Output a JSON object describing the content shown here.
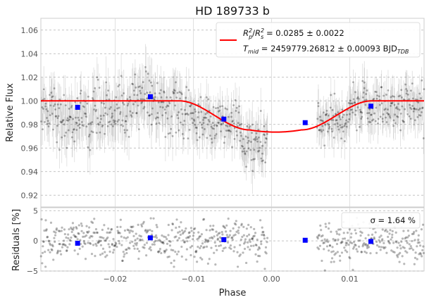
{
  "chart_data": [
    {
      "panel": "main",
      "type": "scatter",
      "title": "HD 189733 b",
      "ylabel": "Relative Flux",
      "xlim": [
        -0.0295,
        0.0195
      ],
      "ylim": [
        0.91,
        1.07
      ],
      "xticks": [
        -0.02,
        -0.01,
        0.0,
        0.01
      ],
      "yticks": [
        0.92,
        0.94,
        0.96,
        0.98,
        1.0,
        1.02,
        1.04,
        1.06
      ],
      "ytick_labels": [
        "0.92",
        "0.94",
        "0.96",
        "0.98",
        "1.00",
        "1.02",
        "1.04",
        "1.06"
      ],
      "grid": true,
      "legend": {
        "placement": "top-right",
        "entries": [
          {
            "line1": "R_p^2/R_s^2 = 0.0285 ± 0.0022",
            "line2": "T_mid = 2459779.26812 ± 0.00093 BJD_TDB"
          }
        ]
      },
      "model": {
        "color": "#ff0000",
        "rp_rs2": 0.0285,
        "t_mid": 2459779.26812,
        "baseline": 1.0,
        "min_flux": 0.9735,
        "ingress_start": -0.0118,
        "ingress_end": -0.0028,
        "egress_start": 0.0038,
        "egress_end": 0.0128
      },
      "binned_points": {
        "color": "#0000ff",
        "x": [
          -0.0248,
          -0.0155,
          -0.0061,
          0.0043,
          0.0127
        ],
        "y": [
          0.9945,
          1.0035,
          0.9845,
          0.9815,
          0.9955
        ]
      },
      "raw_data_segments": [
        {
          "x_start": -0.0295,
          "x_end": -0.0275,
          "mean": 0.995,
          "scatter": 0.012,
          "err": 0.016
        },
        {
          "x_start": -0.0275,
          "x_end": -0.023,
          "mean": 0.985,
          "scatter": 0.011,
          "err": 0.017
        },
        {
          "x_start": -0.023,
          "x_end": -0.0175,
          "mean": 0.992,
          "scatter": 0.011,
          "err": 0.017
        },
        {
          "x_start": -0.0175,
          "x_end": -0.015,
          "mean": 1.005,
          "scatter": 0.012,
          "err": 0.018
        },
        {
          "x_start": -0.015,
          "x_end": -0.0115,
          "mean": 0.993,
          "scatter": 0.011,
          "err": 0.017
        },
        {
          "x_start": -0.0115,
          "x_end": -0.008,
          "mean": 0.985,
          "scatter": 0.01,
          "err": 0.015
        },
        {
          "x_start": -0.008,
          "x_end": -0.004,
          "mean": 0.98,
          "scatter": 0.01,
          "err": 0.014
        },
        {
          "x_start": -0.004,
          "x_end": -0.0005,
          "mean": 0.964,
          "scatter": 0.011,
          "err": 0.016
        },
        {
          "x_start": 0.0058,
          "x_end": 0.01,
          "mean": 0.981,
          "scatter": 0.009,
          "err": 0.013
        },
        {
          "x_start": 0.01,
          "x_end": 0.0195,
          "mean": 0.996,
          "scatter": 0.01,
          "err": 0.014
        }
      ]
    },
    {
      "panel": "residuals",
      "type": "scatter",
      "xlabel": "Phase",
      "ylabel": "Residuals [%]",
      "xlim": [
        -0.0295,
        0.0195
      ],
      "ylim": [
        -5,
        5.5
      ],
      "xticks": [
        -0.02,
        -0.01,
        0.0,
        0.01
      ],
      "xtick_labels": [
        "−0.02",
        "−0.01",
        "0.00",
        "0.01"
      ],
      "yticks": [
        -5,
        0,
        5
      ],
      "ytick_labels": [
        "−5",
        "0",
        "5"
      ],
      "grid": true,
      "legend": {
        "placement": "top-right",
        "text": "σ = 1.64 %"
      },
      "binned_points": {
        "color": "#0000ff",
        "x": [
          -0.0248,
          -0.0155,
          -0.0061,
          0.0043,
          0.0127
        ],
        "y": [
          -0.4,
          0.5,
          0.2,
          0.1,
          -0.1
        ]
      },
      "sigma_percent": 1.64
    }
  ]
}
